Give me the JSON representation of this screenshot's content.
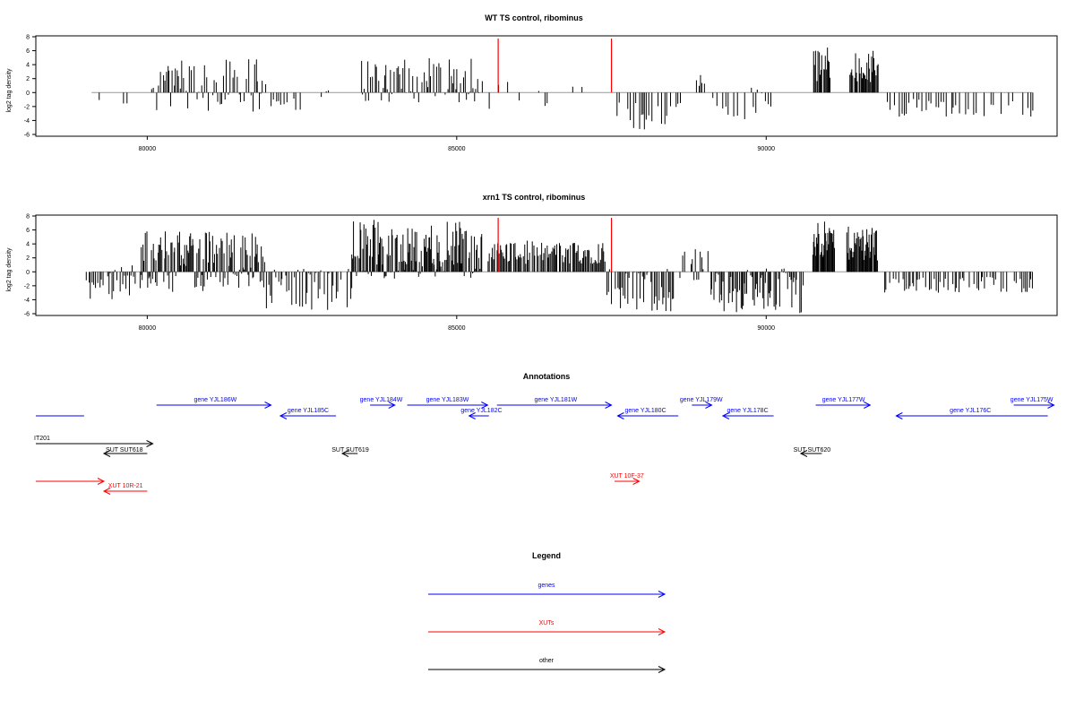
{
  "chart_data": [
    {
      "type": "bar",
      "title": "WT TS control, ribominus",
      "xlabel": "",
      "ylabel": "log2 tag density",
      "xlim": [
        78200,
        94700
      ],
      "ylim": [
        -6,
        8
      ],
      "xticks": [
        80000,
        85000,
        90000
      ],
      "yticks": [
        -6,
        -4,
        -2,
        0,
        2,
        4,
        6,
        8
      ],
      "markers": [
        85670,
        87500
      ],
      "marker_color": "#ff0000",
      "bar_color": "#000000",
      "segments": [
        {
          "from": 79150,
          "to": 79250,
          "step": 50,
          "min": -2.5,
          "max": 1.0,
          "density": 0.6
        },
        {
          "from": 79600,
          "to": 79800,
          "step": 60,
          "min": -2.5,
          "max": 0.0,
          "density": 0.5
        },
        {
          "from": 80050,
          "to": 80150,
          "step": 40,
          "min": 0.0,
          "max": 0.8,
          "density": 0.5
        },
        {
          "from": 80150,
          "to": 81900,
          "step": 25,
          "min": -2.8,
          "max": 4.8,
          "density": 0.85
        },
        {
          "from": 82000,
          "to": 82500,
          "step": 35,
          "min": -3.0,
          "max": 0.0,
          "density": 0.55
        },
        {
          "from": 82800,
          "to": 83100,
          "step": 40,
          "min": -2.0,
          "max": 1.0,
          "density": 0.5
        },
        {
          "from": 83450,
          "to": 85400,
          "step": 25,
          "min": -1.5,
          "max": 5.0,
          "density": 0.85
        },
        {
          "from": 85500,
          "to": 87400,
          "step": 80,
          "min": -2.5,
          "max": 2.5,
          "density": 0.45
        },
        {
          "from": 87550,
          "to": 88600,
          "step": 30,
          "min": -5.5,
          "max": 0.0,
          "density": 0.65
        },
        {
          "from": 88750,
          "to": 89000,
          "step": 30,
          "min": 0.0,
          "max": 3.2,
          "density": 0.7
        },
        {
          "from": 89100,
          "to": 90100,
          "step": 30,
          "min": -5.5,
          "max": 1.5,
          "density": 0.6
        },
        {
          "from": 90760,
          "to": 91050,
          "step": 15,
          "min": 0.0,
          "max": 6.5,
          "density": 0.95
        },
        {
          "from": 91350,
          "to": 91800,
          "step": 15,
          "min": 0.0,
          "max": 6.0,
          "density": 0.95
        },
        {
          "from": 91900,
          "to": 94300,
          "step": 40,
          "min": -3.5,
          "max": 0.0,
          "density": 0.6
        }
      ]
    },
    {
      "type": "bar",
      "title": "xrn1 TS control, ribominus",
      "xlabel": "",
      "ylabel": "log2 tag density",
      "xlim": [
        78200,
        94700
      ],
      "ylim": [
        -6,
        8
      ],
      "xticks": [
        80000,
        85000,
        90000
      ],
      "yticks": [
        -6,
        -4,
        -2,
        0,
        2,
        4,
        6,
        8
      ],
      "markers": [
        85670,
        87500
      ],
      "marker_color": "#ff0000",
      "bar_color": "#000000",
      "segments": [
        {
          "from": 79000,
          "to": 79900,
          "step": 25,
          "min": -4.0,
          "max": 1.0,
          "density": 0.75
        },
        {
          "from": 79900,
          "to": 81900,
          "step": 15,
          "min": -3.0,
          "max": 6.0,
          "density": 0.95
        },
        {
          "from": 81900,
          "to": 83300,
          "step": 25,
          "min": -5.5,
          "max": 0.5,
          "density": 0.75
        },
        {
          "from": 83300,
          "to": 85400,
          "step": 15,
          "min": -1.0,
          "max": 7.5,
          "density": 0.95
        },
        {
          "from": 85500,
          "to": 87400,
          "step": 18,
          "min": 0.0,
          "max": 4.5,
          "density": 0.9
        },
        {
          "from": 87400,
          "to": 88500,
          "step": 22,
          "min": -5.8,
          "max": 0.5,
          "density": 0.8
        },
        {
          "from": 88600,
          "to": 89100,
          "step": 25,
          "min": -2.0,
          "max": 3.5,
          "density": 0.8
        },
        {
          "from": 89100,
          "to": 90600,
          "step": 18,
          "min": -6.0,
          "max": 0.5,
          "density": 0.85
        },
        {
          "from": 90750,
          "to": 91100,
          "step": 12,
          "min": 0.0,
          "max": 7.2,
          "density": 0.95
        },
        {
          "from": 91300,
          "to": 91800,
          "step": 12,
          "min": 0.0,
          "max": 6.5,
          "density": 0.95
        },
        {
          "from": 91900,
          "to": 94300,
          "step": 30,
          "min": -3.0,
          "max": 0.0,
          "density": 0.7
        }
      ]
    }
  ],
  "annotations": {
    "title": "Annotations",
    "items": [
      {
        "label": "",
        "start": 78200,
        "end": 78980,
        "dir": "none",
        "color": "blue",
        "row": 1,
        "labelx": 78590
      },
      {
        "label": "gene YJL186W",
        "start": 80150,
        "end": 82000,
        "dir": "right",
        "color": "blue",
        "row": 0,
        "labelx": 81100
      },
      {
        "label": "gene YJL185C",
        "start": 82150,
        "end": 83050,
        "dir": "left",
        "color": "blue",
        "row": 1,
        "labelx": 82600
      },
      {
        "label": "gene YJL184W",
        "start": 83600,
        "end": 84000,
        "dir": "right",
        "color": "blue",
        "row": 0,
        "labelx": 83780
      },
      {
        "label": "gene YJL183W",
        "start": 84200,
        "end": 85500,
        "dir": "right",
        "color": "blue",
        "row": 0,
        "labelx": 84850
      },
      {
        "label": "gene YJL182C",
        "start": 85200,
        "end": 85520,
        "dir": "left",
        "color": "blue",
        "row": 1,
        "labelx": 85400
      },
      {
        "label": "gene YJL181W",
        "start": 85650,
        "end": 87500,
        "dir": "right",
        "color": "blue",
        "row": 0,
        "labelx": 86600
      },
      {
        "label": "gene YJL180C",
        "start": 87600,
        "end": 88580,
        "dir": "left",
        "color": "blue",
        "row": 1,
        "labelx": 88050
      },
      {
        "label": "gene YJL179W",
        "start": 88800,
        "end": 89120,
        "dir": "right",
        "color": "blue",
        "row": 0,
        "labelx": 88950
      },
      {
        "label": "gene YJL178C",
        "start": 89300,
        "end": 90120,
        "dir": "left",
        "color": "blue",
        "row": 1,
        "labelx": 89700
      },
      {
        "label": "gene YJL177W",
        "start": 90800,
        "end": 91680,
        "dir": "right",
        "color": "blue",
        "row": 0,
        "labelx": 91250
      },
      {
        "label": "gene YJL176C",
        "start": 92100,
        "end": 94550,
        "dir": "left",
        "color": "blue",
        "row": 1,
        "labelx": 93300
      },
      {
        "label": "gene YJL175W",
        "start": 94000,
        "end": 94650,
        "dir": "right",
        "color": "blue",
        "row": 0,
        "labelx": 94290
      },
      {
        "label": "IT201",
        "start": 78200,
        "end": 80090,
        "dir": "right",
        "color": "black",
        "row": 2,
        "labelx": 78320
      },
      {
        "label": "SUT SUT618",
        "start": 79300,
        "end": 80000,
        "dir": "left",
        "color": "black",
        "row": 3,
        "labelx": 79630
      },
      {
        "label": "SUT SUT619",
        "start": 83150,
        "end": 83400,
        "dir": "left",
        "color": "black",
        "row": 3,
        "labelx": 83280
      },
      {
        "label": "SUT SUT620",
        "start": 90560,
        "end": 90900,
        "dir": "left",
        "color": "black",
        "row": 3,
        "labelx": 90740
      },
      {
        "label": "",
        "start": 78200,
        "end": 79300,
        "dir": "right",
        "color": "red",
        "row": 4,
        "labelx": 78700
      },
      {
        "label": "XUT 10R-21",
        "start": 79300,
        "end": 80000,
        "dir": "left",
        "color": "red",
        "row": 5,
        "labelx": 79650
      },
      {
        "label": "XUT 10F-37",
        "start": 87550,
        "end": 87950,
        "dir": "right",
        "color": "red",
        "row": 6,
        "labelx": 87750
      }
    ]
  },
  "legend": {
    "title": "Legend",
    "items": [
      {
        "label": "genes",
        "color": "blue"
      },
      {
        "label": "XUTs",
        "color": "red"
      },
      {
        "label": "other",
        "color": "black"
      }
    ]
  },
  "colors": {
    "blue": "#0000ff",
    "red": "#ff0000",
    "black": "#000000",
    "baseline": "#999999"
  }
}
